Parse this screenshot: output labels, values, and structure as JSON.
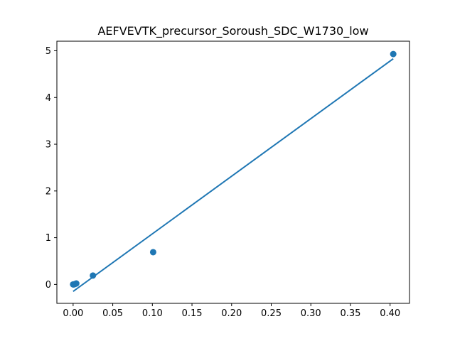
{
  "chart_data": {
    "type": "scatter",
    "title": "AEFVEVTK_precursor_Soroush_SDC_W1730_low",
    "xlabel": "",
    "ylabel": "",
    "xlim": [
      -0.0205,
      0.4245
    ],
    "ylim": [
      -0.405,
      5.205
    ],
    "x_ticks": [
      "0.00",
      "0.05",
      "0.10",
      "0.15",
      "0.20",
      "0.25",
      "0.30",
      "0.35",
      "0.40"
    ],
    "x_tick_values": [
      0,
      0.05,
      0.1,
      0.15,
      0.2,
      0.25,
      0.3,
      0.35,
      0.4
    ],
    "y_ticks": [
      "0",
      "1",
      "2",
      "3",
      "4",
      "5"
    ],
    "y_tick_values": [
      0,
      1,
      2,
      3,
      4,
      5
    ],
    "grid": false,
    "legend": "none",
    "series": [
      {
        "kind": "points",
        "color": "#1f77b4",
        "x": [
          0.0,
          0.001,
          0.0025,
          0.004,
          0.025,
          0.101,
          0.404
        ],
        "y": [
          0.0,
          0.0,
          0.01,
          0.02,
          0.19,
          0.69,
          4.93
        ]
      },
      {
        "kind": "fit-line",
        "color": "#1f77b4",
        "x": [
          0.0,
          0.404
        ],
        "y": [
          -0.15,
          4.83
        ]
      }
    ]
  }
}
